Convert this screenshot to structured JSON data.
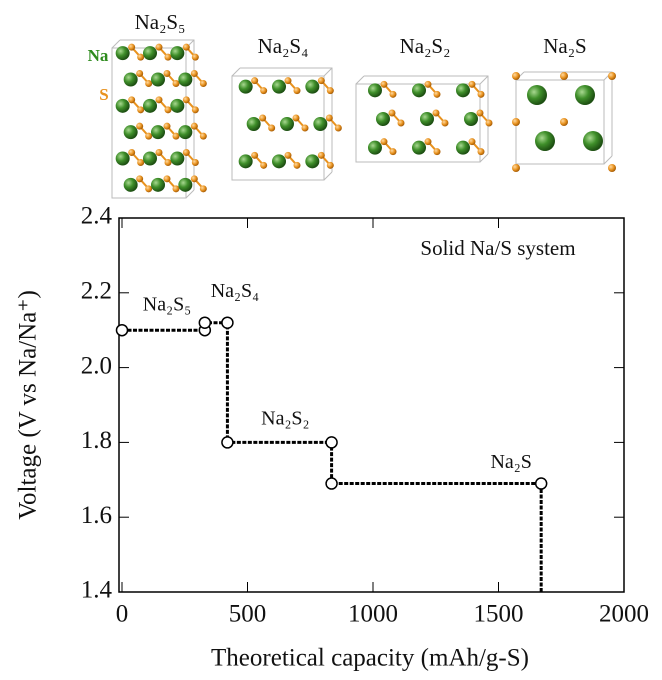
{
  "chart_data": {
    "type": "line",
    "structure_labels": [
      "Na₂S₅",
      "Na₂S₄",
      "Na₂S₂",
      "Na₂S"
    ],
    "element_labels": [
      "Na",
      "S"
    ],
    "x_label": "Theoretical capacity (mAh/g-S)",
    "y_label": "Voltage (V vs Na/Na⁺)",
    "annotations": [
      {
        "text": "Solid Na/S system"
      },
      {
        "text": "Na₂S₅",
        "x": 0,
        "y": 2.09
      },
      {
        "text": "Na₂S₄",
        "x": 410,
        "y": 2.11
      },
      {
        "text": "Na₂S₂",
        "x": 830,
        "y": 1.79
      },
      {
        "text": "Na₂S",
        "x": 1670,
        "y": 1.68
      }
    ],
    "series": [
      {
        "color": "#000000",
        "x": [
          0,
          330,
          330,
          420,
          420,
          835,
          835,
          1670
        ],
        "values": [
          2.1,
          2.1,
          2.12,
          2.12,
          1.8,
          1.8,
          1.69,
          1.69
        ]
      }
    ],
    "xlim": [
      0,
      2000
    ],
    "xticks": [
      0,
      500,
      1000,
      1500,
      2000
    ],
    "ylim": [
      1.4,
      2.4
    ],
    "yticks": [
      {
        "value": 1.4,
        "label": "1.4"
      },
      {
        "value": 1.6,
        "label": "1.6"
      },
      {
        "value": 1.8,
        "label": "1.8"
      },
      {
        "value": 2.0,
        "label": "2.0"
      },
      {
        "value": 2.2,
        "label": "2.2"
      },
      {
        "value": 2.4,
        "label": "2.4"
      }
    ]
  }
}
